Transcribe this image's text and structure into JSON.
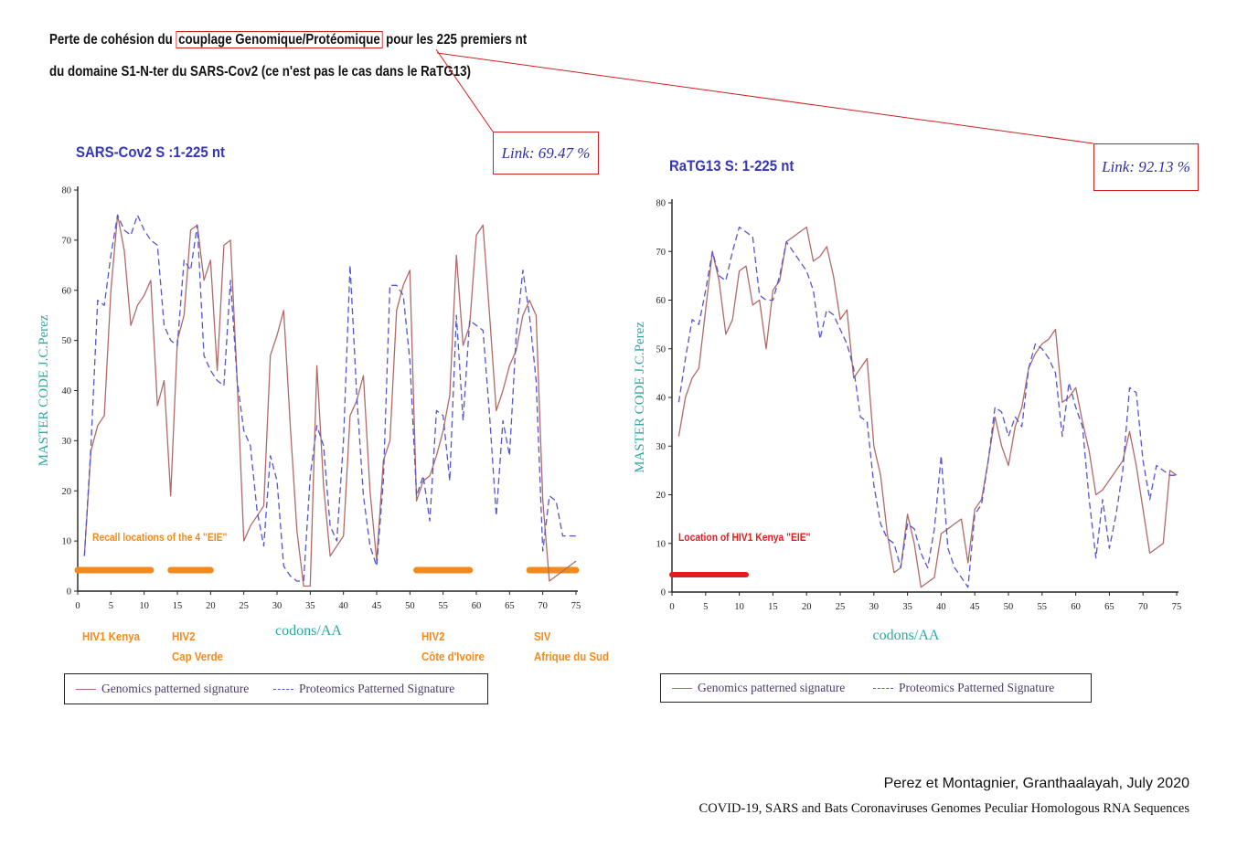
{
  "header": {
    "line1_before": "Perte  de cohésion du ",
    "line1_boxed": "couplage Genomique/Protéomique",
    "line1_after": " pour les 225 premiers nt",
    "line2": "du domaine  S1-N-ter du SARS-Cov2  (ce n'est pas le cas dans le RaTG13)"
  },
  "colors": {
    "genomics": "#b06a6a",
    "proteomics": "#5555cc",
    "highlight": "#d02020",
    "orange": "#f28a1e",
    "red": "#e41b1b",
    "axis_label": "#2aa9a0",
    "title": "#3535b8"
  },
  "citation": {
    "line1": "Perez et Montagnier, Granthaalayah, July 2020",
    "line2": "COVID-19, SARS and Bats Coronaviruses Genomes Peculiar Homologous RNA Sequences"
  },
  "chart_data": [
    {
      "type": "line",
      "title": "SARS-Cov2  S :1-225 nt",
      "link": "Link: 69.47 %",
      "xlabel": "codons/AA",
      "ylabel": "MASTER CODE J.C.Perez",
      "xlim": [
        0,
        75
      ],
      "ylim": [
        0,
        80
      ],
      "xticks": [
        0,
        5,
        10,
        15,
        20,
        25,
        30,
        35,
        40,
        45,
        50,
        55,
        60,
        65,
        70,
        75
      ],
      "yticks": [
        0,
        10,
        20,
        30,
        40,
        50,
        60,
        70,
        80
      ],
      "legend": [
        "Genomics patterned signature",
        "Proteomics Patterned Signature"
      ],
      "series": [
        {
          "name": "Genomics patterned signature",
          "x": [
            1,
            2,
            3,
            4,
            5,
            6,
            7,
            8,
            9,
            10,
            11,
            12,
            13,
            14,
            15,
            16,
            17,
            18,
            19,
            20,
            21,
            22,
            23,
            24,
            25,
            26,
            27,
            28,
            29,
            30,
            31,
            32,
            33,
            34,
            35,
            36,
            37,
            38,
            39,
            40,
            41,
            42,
            43,
            44,
            45,
            46,
            47,
            48,
            49,
            50,
            51,
            52,
            53,
            54,
            55,
            56,
            57,
            58,
            59,
            60,
            61,
            62,
            63,
            64,
            65,
            66,
            67,
            68,
            69,
            70,
            71,
            72,
            73,
            74,
            75
          ],
          "y": [
            7,
            28,
            33,
            35,
            60,
            75,
            68,
            53,
            57,
            59,
            62,
            37,
            42,
            19,
            50,
            55,
            72,
            73,
            62,
            66,
            44,
            69,
            70,
            42,
            10,
            13,
            15,
            17,
            47,
            51,
            56,
            33,
            12,
            1,
            1,
            45,
            21,
            7,
            9,
            11,
            35,
            38,
            43,
            20,
            6,
            26,
            30,
            56,
            61,
            64,
            18,
            22,
            23,
            27,
            32,
            39,
            67,
            49,
            53,
            71,
            73,
            55,
            36,
            40,
            45,
            48,
            55,
            58,
            55,
            18,
            2,
            3,
            4,
            5,
            6
          ]
        },
        {
          "name": "Proteomics Patterned Signature",
          "x": [
            1,
            2,
            3,
            4,
            5,
            6,
            7,
            8,
            9,
            10,
            11,
            12,
            13,
            14,
            15,
            16,
            17,
            18,
            19,
            20,
            21,
            22,
            23,
            24,
            25,
            26,
            27,
            28,
            29,
            30,
            31,
            32,
            33,
            34,
            35,
            36,
            37,
            38,
            39,
            40,
            41,
            42,
            43,
            44,
            45,
            46,
            47,
            48,
            49,
            50,
            51,
            52,
            53,
            54,
            55,
            56,
            57,
            58,
            59,
            60,
            61,
            62,
            63,
            64,
            65,
            66,
            67,
            68,
            69,
            70,
            71,
            72,
            73,
            74,
            75
          ],
          "y": [
            7,
            29,
            58,
            57,
            67,
            75,
            72,
            71,
            75,
            72,
            70,
            69,
            53,
            50,
            49,
            66,
            64,
            73,
            47,
            44,
            42,
            41,
            62,
            42,
            32,
            29,
            16,
            9,
            27,
            22,
            5,
            3,
            2,
            2,
            23,
            33,
            29,
            13,
            10,
            30,
            65,
            39,
            19,
            9,
            5,
            22,
            61,
            61,
            59,
            46,
            19,
            23,
            14,
            36,
            35,
            22,
            55,
            34,
            54,
            53,
            52,
            35,
            15,
            34,
            27,
            51,
            64,
            55,
            42,
            8,
            19,
            18,
            11,
            11,
            11
          ]
        }
      ],
      "annotation": "Recall locations of the 4 \"EIE\"",
      "eie_segments": [
        [
          0,
          11
        ],
        [
          14,
          20
        ],
        [
          51,
          59
        ],
        [
          68,
          75
        ]
      ],
      "eie_labels": [
        {
          "lines": [
            "HIV1 Kenya"
          ]
        },
        {
          "lines": [
            "HIV2",
            "Cap Verde"
          ]
        },
        {
          "lines": [
            "HIV2",
            "Côte d'Ivoire"
          ]
        },
        {
          "lines": [
            "SIV",
            "Afrique du Sud"
          ]
        }
      ]
    },
    {
      "type": "line",
      "title": "RaTG13  S: 1-225 nt",
      "link": "Link: 92.13 %",
      "xlabel": "codons/AA",
      "ylabel": "MASTER CODE J.C.Perez",
      "xlim": [
        0,
        75
      ],
      "ylim": [
        0,
        80
      ],
      "xticks": [
        0,
        5,
        10,
        15,
        20,
        25,
        30,
        35,
        40,
        45,
        50,
        55,
        60,
        65,
        70,
        75
      ],
      "yticks": [
        0,
        10,
        20,
        30,
        40,
        50,
        60,
        70,
        80
      ],
      "legend": [
        "Genomics patterned signature",
        "Proteomics Patterned Signature"
      ],
      "series": [
        {
          "name": "Genomics patterned signature",
          "x": [
            1,
            2,
            3,
            4,
            5,
            6,
            7,
            8,
            9,
            10,
            11,
            12,
            13,
            14,
            15,
            16,
            17,
            18,
            19,
            20,
            21,
            22,
            23,
            24,
            25,
            26,
            27,
            28,
            29,
            30,
            31,
            32,
            33,
            34,
            35,
            36,
            37,
            38,
            39,
            40,
            41,
            42,
            43,
            44,
            45,
            46,
            47,
            48,
            49,
            50,
            51,
            52,
            53,
            54,
            55,
            56,
            57,
            58,
            59,
            60,
            61,
            62,
            63,
            64,
            65,
            66,
            67,
            68,
            69,
            70,
            71,
            72,
            73,
            74,
            75
          ],
          "y": [
            32,
            40,
            44,
            46,
            58,
            70,
            64,
            53,
            56,
            66,
            67,
            59,
            60,
            50,
            62,
            64,
            72,
            73,
            74,
            75,
            68,
            69,
            71,
            65,
            56,
            58,
            44,
            46,
            48,
            30,
            24,
            12,
            4,
            5,
            16,
            10,
            1,
            2,
            3,
            12,
            13,
            14,
            15,
            6,
            17,
            19,
            27,
            36,
            30,
            26,
            34,
            38,
            46,
            49,
            51,
            52,
            54,
            39,
            40,
            42,
            35,
            29,
            20,
            21,
            23,
            25,
            27,
            33,
            26,
            17,
            8,
            9,
            10,
            25,
            24
          ]
        },
        {
          "name": "Proteomics Patterned Signature",
          "x": [
            1,
            2,
            3,
            4,
            5,
            6,
            7,
            8,
            9,
            10,
            11,
            12,
            13,
            14,
            15,
            16,
            17,
            18,
            19,
            20,
            21,
            22,
            23,
            24,
            25,
            26,
            27,
            28,
            29,
            30,
            31,
            32,
            33,
            34,
            35,
            36,
            37,
            38,
            39,
            40,
            41,
            42,
            43,
            44,
            45,
            46,
            47,
            48,
            49,
            50,
            51,
            52,
            53,
            54,
            55,
            56,
            57,
            58,
            59,
            60,
            61,
            62,
            63,
            64,
            65,
            66,
            67,
            68,
            69,
            70,
            71,
            72,
            73,
            74,
            75
          ],
          "y": [
            39,
            48,
            56,
            55,
            62,
            70,
            65,
            64,
            70,
            75,
            74,
            73,
            61,
            60,
            60,
            65,
            72,
            70,
            68,
            66,
            62,
            52,
            58,
            57,
            54,
            51,
            46,
            36,
            35,
            22,
            14,
            11,
            10,
            5,
            14,
            13,
            8,
            5,
            13,
            28,
            9,
            5,
            3,
            1,
            16,
            18,
            27,
            38,
            37,
            32,
            36,
            34,
            46,
            51,
            50,
            48,
            45,
            32,
            43,
            38,
            34,
            19,
            7,
            19,
            9,
            16,
            25,
            42,
            41,
            27,
            19,
            26,
            25,
            24,
            24
          ]
        }
      ],
      "annotation": "Location of HIV1 Kenya \"EIE\"",
      "eie_segments": [
        [
          0,
          11
        ]
      ]
    }
  ]
}
